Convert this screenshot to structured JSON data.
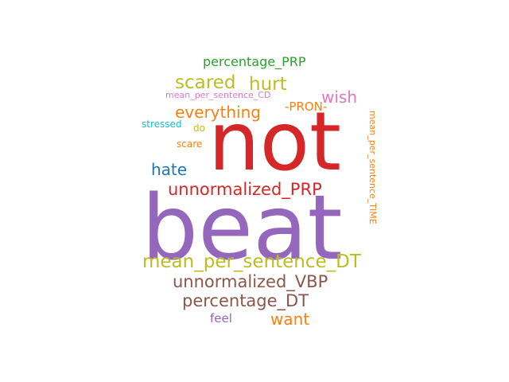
{
  "words": [
    {
      "text": "beat",
      "color": "#9467bd"
    },
    {
      "text": "not",
      "color": "#d62728"
    },
    {
      "text": "unnormalized_PRP",
      "color": "#d62728"
    },
    {
      "text": "mean_per_sentence_DT",
      "color": "#bcbd22"
    },
    {
      "text": "unnormalized_VBP",
      "color": "#8c564b"
    },
    {
      "text": "percentage_DT",
      "color": "#8c564b"
    },
    {
      "text": "scared",
      "color": "#bcbd22"
    },
    {
      "text": "hurt",
      "color": "#bcbd22"
    },
    {
      "text": "everything",
      "color": "#ff7f0e"
    },
    {
      "text": "hate",
      "color": "#1f77b4"
    },
    {
      "text": "wish",
      "color": "#e377c2"
    },
    {
      "text": "want",
      "color": "#ff7f0e"
    },
    {
      "text": "percentage_PRP",
      "color": "#2ca02c"
    },
    {
      "text": "-PRON-",
      "color": "#ff7f0e"
    },
    {
      "text": "mean_per_sentence_CD",
      "color": "#e377c2"
    },
    {
      "text": "stressed",
      "color": "#17becf"
    },
    {
      "text": "do",
      "color": "#bcbd22"
    },
    {
      "text": "scare",
      "color": "#ff7f0e"
    },
    {
      "text": "feel",
      "color": "#9467bd"
    },
    {
      "text": "mean_per_sentence_TIME",
      "color": "#ff7f0e"
    }
  ]
}
